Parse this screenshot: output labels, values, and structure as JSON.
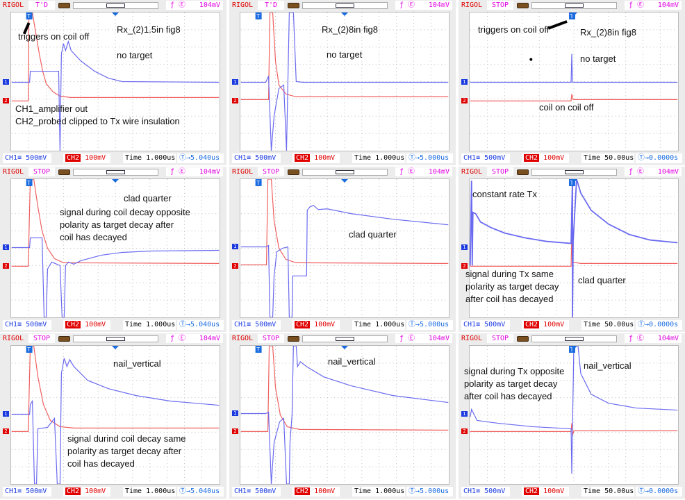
{
  "colors": {
    "ch1": "#6a6af0",
    "ch2": "#f06060",
    "brand": "#e00000",
    "trigger": "#e000e0",
    "offset": "#1a6be0"
  },
  "common": {
    "brand": "RIGOL",
    "trigger_level": "104mV",
    "trigger_edge_icon": "rising-edge-icon",
    "ch1_label": "CH1",
    "ch2_label": "CH2",
    "time_label": "Time",
    "ch1_scale": "500mV",
    "ch2_scale": "100mV",
    "ch1_marker": "1",
    "ch2_marker": "2",
    "trigger_marker": "T"
  },
  "panels": [
    {
      "mode": "T'D",
      "time": "1.000us",
      "offset": "5.040us",
      "annotations": [
        "triggers on coil off",
        "Rx_(2)1.5in fig8",
        "no target",
        "CH1_amplifier out",
        "CH2_probed clipped to Tx wire insulation"
      ]
    },
    {
      "mode": "T'D",
      "time": "1.000us",
      "offset": "5.000us",
      "annotations": [
        "Rx_(2)8in fig8",
        "no target"
      ]
    },
    {
      "mode": "STOP",
      "time": "50.00us",
      "offset": "0.0000s",
      "annotations": [
        "triggers on coil off",
        "Rx_(2)8in fig8",
        "no target",
        "coil on  coil off"
      ]
    },
    {
      "mode": "STOP",
      "time": "1.000us",
      "offset": "5.040us",
      "annotations": [
        "clad quarter",
        "signal during coil decay opposite",
        "polarity as target decay after",
        "coil has decayed"
      ]
    },
    {
      "mode": "STOP",
      "time": "1.000us",
      "offset": "5.000us",
      "annotations": [
        "clad quarter"
      ]
    },
    {
      "mode": "STOP",
      "time": "50.00us",
      "offset": "0.0000s",
      "annotations": [
        "constant rate Tx",
        "signal during Tx same",
        "polarity as target decay",
        "after coil has decayed",
        "clad quarter"
      ]
    },
    {
      "mode": "STOP",
      "time": "1.000us",
      "offset": "5.040us",
      "annotations": [
        "nail_vertical",
        "signal durind coil decay same",
        "polarity as target decay after",
        "coil has decayed"
      ]
    },
    {
      "mode": "STOP",
      "time": "1.000us",
      "offset": "5.000us",
      "annotations": [
        "nail_vertical"
      ]
    },
    {
      "mode": "STOP",
      "time": "50.00us",
      "offset": "0.0000s",
      "annotations": [
        "signal during Tx opposite",
        "polarity as target decay",
        "after coil has decayed",
        "nail_vertical"
      ]
    }
  ]
}
